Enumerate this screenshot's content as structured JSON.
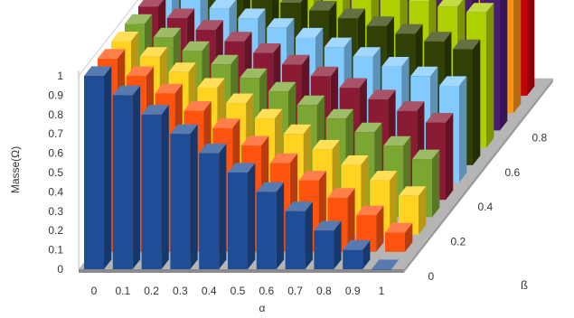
{
  "chart_data": {
    "type": "bar",
    "title": "",
    "xlabel": "α",
    "ylabel": "Masse(Ω)",
    "zlabel": "ß",
    "ylim": [
      0,
      1
    ],
    "y_ticks": [
      "0",
      "0.1",
      "0.2",
      "0.3",
      "0.4",
      "0.5",
      "0.6",
      "0.7",
      "0.8",
      "0.9",
      "1"
    ],
    "x_ticks": [
      "0",
      "0.1",
      "0.2",
      "0.3",
      "0.4",
      "0.5",
      "0.6",
      "0.7",
      "0.8",
      "0.9",
      "1"
    ],
    "z_ticks": [
      "0",
      "0.2",
      "0.4",
      "0.6",
      "0.8"
    ],
    "grid": false,
    "legend": "none",
    "categories": [
      "0",
      "0.1",
      "0.2",
      "0.3",
      "0.4",
      "0.5",
      "0.6",
      "0.7",
      "0.8",
      "0.9",
      "1"
    ],
    "series": [
      {
        "color": "#1f4e96",
        "values": [
          1,
          0.9,
          0.8,
          0.7,
          0.6,
          0.5,
          0.4,
          0.3,
          0.2,
          0.1,
          0
        ]
      },
      {
        "color": "#ff5310",
        "values": [
          1,
          0.91,
          0.82,
          0.73,
          0.64,
          0.55,
          0.46,
          0.37,
          0.28,
          0.19,
          0.1
        ]
      },
      {
        "color": "#ffd320",
        "values": [
          1,
          0.92,
          0.84,
          0.76,
          0.68,
          0.6,
          0.52,
          0.44,
          0.36,
          0.28,
          0.2
        ]
      },
      {
        "color": "#7ba632",
        "values": [
          1,
          0.93,
          0.86,
          0.79,
          0.72,
          0.65,
          0.58,
          0.51,
          0.44,
          0.37,
          0.3
        ]
      },
      {
        "color": "#8b1a34",
        "values": [
          1,
          0.94,
          0.88,
          0.82,
          0.76,
          0.7,
          0.64,
          0.58,
          0.52,
          0.46,
          0.4
        ]
      },
      {
        "color": "#83caff",
        "values": [
          1,
          0.95,
          0.9,
          0.85,
          0.8,
          0.75,
          0.7,
          0.65,
          0.6,
          0.55,
          0.5
        ]
      },
      {
        "color": "#314004",
        "values": [
          1,
          0.96,
          0.92,
          0.88,
          0.84,
          0.8,
          0.76,
          0.72,
          0.68,
          0.64,
          0.6
        ]
      },
      {
        "color": "#aecf00",
        "values": [
          1,
          0.97,
          0.94,
          0.91,
          0.88,
          0.85,
          0.82,
          0.79,
          0.76,
          0.73,
          0.7
        ]
      },
      {
        "color": "#4b1f6f",
        "values": [
          1,
          0.98,
          0.96,
          0.94,
          0.92,
          0.9,
          0.88,
          0.86,
          0.84,
          0.82,
          0.8
        ]
      },
      {
        "color": "#ff950e",
        "values": [
          1,
          0.99,
          0.98,
          0.97,
          0.96,
          0.95,
          0.94,
          0.93,
          0.92,
          0.91,
          0.9
        ]
      },
      {
        "color": "#c5000b",
        "values": [
          1,
          1,
          1,
          1,
          1,
          1,
          1,
          1,
          1,
          1,
          1
        ]
      }
    ]
  }
}
